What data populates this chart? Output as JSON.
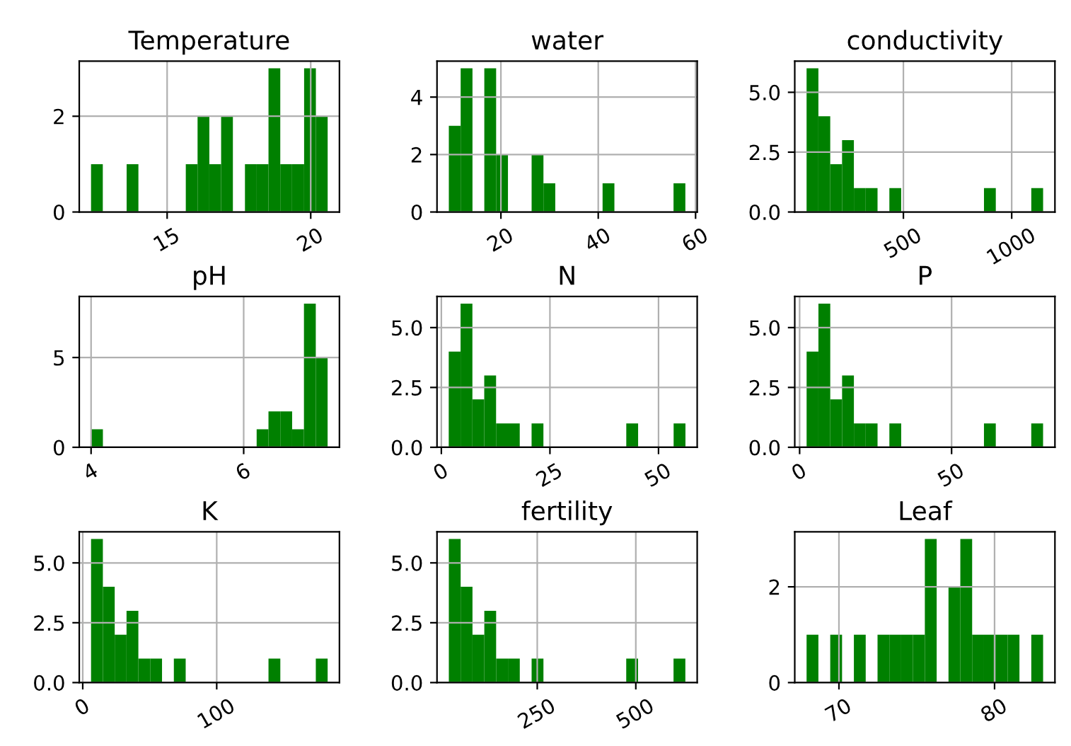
{
  "chart_data": [
    {
      "type": "histogram",
      "title": "Temperature",
      "color": "#008000",
      "grid": true,
      "bins": [
        12.35,
        12.76,
        13.17,
        13.59,
        14.0,
        14.41,
        14.82,
        15.23,
        15.65,
        16.06,
        16.47,
        16.88,
        17.29,
        17.71,
        18.12,
        18.53,
        18.94,
        19.35,
        19.77,
        20.18,
        20.59
      ],
      "values": [
        1,
        0,
        0,
        1,
        0,
        0,
        0,
        0,
        1,
        2,
        1,
        2,
        0,
        1,
        1,
        3,
        1,
        1,
        3,
        2
      ],
      "xlim": [
        11.94,
        21.0
      ],
      "xticks": [
        15,
        20
      ],
      "ylim": [
        0,
        3.15
      ],
      "yticks": [
        0,
        2
      ]
    },
    {
      "type": "histogram",
      "title": "water",
      "color": "#008000",
      "grid": true,
      "bins": [
        9.3,
        11.73,
        14.16,
        16.59,
        19.02,
        21.45,
        23.88,
        26.31,
        28.74,
        31.17,
        33.6,
        36.03,
        38.46,
        40.89,
        43.32,
        45.75,
        48.18,
        50.61,
        53.04,
        55.47,
        57.9
      ],
      "values": [
        3,
        5,
        0,
        5,
        2,
        0,
        0,
        2,
        1,
        0,
        0,
        0,
        0,
        1,
        0,
        0,
        0,
        0,
        0,
        1
      ],
      "xlim": [
        6.87,
        60.33
      ],
      "xticks": [
        20,
        40,
        60
      ],
      "ylim": [
        0,
        5.25
      ],
      "yticks": [
        0,
        2,
        4
      ]
    },
    {
      "type": "histogram",
      "title": "conductivity",
      "color": "#008000",
      "grid": true,
      "bins": [
        53,
        107.6,
        162.2,
        216.8,
        271.4,
        326,
        380.6,
        435.2,
        489.8,
        544.4,
        599,
        653.6,
        708.2,
        762.8,
        817.4,
        872,
        926.6,
        981.2,
        1035.8,
        1090.4,
        1145
      ],
      "values": [
        6,
        4,
        2,
        3,
        1,
        1,
        0,
        1,
        0,
        0,
        0,
        0,
        0,
        0,
        0,
        1,
        0,
        0,
        0,
        1
      ],
      "xlim": [
        -1.6,
        1199.6
      ],
      "xticks": [
        500,
        1000
      ],
      "ylim": [
        0,
        6.3
      ],
      "yticks": [
        {
          "value": 0,
          "label": "0.0"
        },
        {
          "value": 2.5,
          "label": "2.5"
        },
        {
          "value": 5,
          "label": "5.0"
        }
      ]
    },
    {
      "type": "histogram",
      "title": "pH",
      "color": "#008000",
      "grid": true,
      "bins": [
        4.0,
        4.155,
        4.31,
        4.465,
        4.62,
        4.775,
        4.93,
        5.085,
        5.24,
        5.395,
        5.55,
        5.705,
        5.86,
        6.015,
        6.17,
        6.325,
        6.48,
        6.635,
        6.79,
        6.945,
        7.1
      ],
      "values": [
        1,
        0,
        0,
        0,
        0,
        0,
        0,
        0,
        0,
        0,
        0,
        0,
        0,
        0,
        1,
        2,
        2,
        1,
        8,
        5
      ],
      "xlim": [
        3.845,
        7.255
      ],
      "xticks": [
        4,
        6
      ],
      "ylim": [
        0,
        8.4
      ],
      "yticks": [
        0,
        5
      ]
    },
    {
      "type": "histogram",
      "title": "N",
      "color": "#008000",
      "grid": true,
      "bins": [
        1.7,
        4.425,
        7.15,
        9.875,
        12.6,
        15.325,
        18.05,
        20.775,
        23.5,
        26.225,
        28.95,
        31.675,
        34.4,
        37.125,
        39.85,
        42.575,
        45.3,
        48.025,
        50.75,
        53.475,
        56.2
      ],
      "values": [
        4,
        6,
        2,
        3,
        1,
        1,
        0,
        1,
        0,
        0,
        0,
        0,
        0,
        0,
        0,
        1,
        0,
        0,
        0,
        1
      ],
      "xlim": [
        -1.0,
        58.9
      ],
      "xticks": [
        0,
        25,
        50
      ],
      "ylim": [
        0,
        6.3
      ],
      "yticks": [
        {
          "value": 0,
          "label": "0.0"
        },
        {
          "value": 2.5,
          "label": "2.5"
        },
        {
          "value": 5,
          "label": "5.0"
        }
      ]
    },
    {
      "type": "histogram",
      "title": "P",
      "color": "#008000",
      "grid": true,
      "bins": [
        2.3,
        6.19,
        10.08,
        13.97,
        17.86,
        21.75,
        25.64,
        29.53,
        33.42,
        37.31,
        41.2,
        45.09,
        48.98,
        52.87,
        56.76,
        60.65,
        64.54,
        68.43,
        72.32,
        76.21,
        80.1
      ],
      "values": [
        4,
        6,
        2,
        3,
        1,
        1,
        0,
        1,
        0,
        0,
        0,
        0,
        0,
        0,
        0,
        1,
        0,
        0,
        0,
        1
      ],
      "xlim": [
        -1.6,
        84.0
      ],
      "xticks": [
        0,
        50
      ],
      "ylim": [
        0,
        6.3
      ],
      "yticks": [
        {
          "value": 0,
          "label": "0.0"
        },
        {
          "value": 2.5,
          "label": "2.5"
        },
        {
          "value": 5,
          "label": "5.0"
        }
      ]
    },
    {
      "type": "histogram",
      "title": "K",
      "color": "#008000",
      "grid": true,
      "bins": [
        6.2,
        15.03,
        23.86,
        32.69,
        41.52,
        50.35,
        59.18,
        68.01,
        76.84,
        85.67,
        94.5,
        103.33,
        112.16,
        120.99,
        129.82,
        138.65,
        147.48,
        156.31,
        165.14,
        173.97,
        182.8
      ],
      "values": [
        6,
        4,
        2,
        3,
        1,
        1,
        0,
        1,
        0,
        0,
        0,
        0,
        0,
        0,
        0,
        1,
        0,
        0,
        0,
        1
      ],
      "xlim": [
        -2.6,
        191.6
      ],
      "xticks": [
        0,
        100
      ],
      "ylim": [
        0,
        6.3
      ],
      "yticks": [
        {
          "value": 0,
          "label": "0.0"
        },
        {
          "value": 2.5,
          "label": "2.5"
        },
        {
          "value": 5,
          "label": "5.0"
        }
      ]
    },
    {
      "type": "histogram",
      "title": "fertility",
      "color": "#008000",
      "grid": true,
      "bins": [
        25.7,
        55.7,
        85.7,
        115.7,
        145.7,
        175.7,
        205.7,
        235.7,
        265.7,
        295.7,
        325.7,
        355.7,
        385.7,
        415.7,
        445.7,
        475.7,
        505.7,
        535.7,
        565.7,
        595.7,
        625.7
      ],
      "values": [
        6,
        4,
        2,
        3,
        1,
        1,
        0,
        1,
        0,
        0,
        0,
        0,
        0,
        0,
        0,
        1,
        0,
        0,
        0,
        1
      ],
      "xlim": [
        -4.3,
        655.7
      ],
      "xticks": [
        250,
        500
      ],
      "ylim": [
        0,
        6.3
      ],
      "yticks": [
        {
          "value": 0,
          "label": "0.0"
        },
        {
          "value": 2.5,
          "label": "2.5"
        },
        {
          "value": 5,
          "label": "5.0"
        }
      ]
    },
    {
      "type": "histogram",
      "title": "Leaf",
      "color": "#008000",
      "grid": true,
      "bins": [
        67.92,
        68.68,
        69.44,
        70.2,
        70.96,
        71.72,
        72.48,
        73.24,
        74.0,
        74.76,
        75.52,
        76.28,
        77.04,
        77.8,
        78.56,
        79.32,
        80.08,
        80.84,
        81.6,
        82.36,
        83.12
      ],
      "values": [
        1,
        0,
        1,
        0,
        1,
        0,
        1,
        1,
        1,
        1,
        3,
        0,
        2,
        3,
        1,
        1,
        1,
        1,
        0,
        1
      ],
      "xlim": [
        67.16,
        83.88
      ],
      "xticks": [
        70,
        80
      ],
      "ylim": [
        0,
        3.15
      ],
      "yticks": [
        0,
        2
      ]
    }
  ]
}
